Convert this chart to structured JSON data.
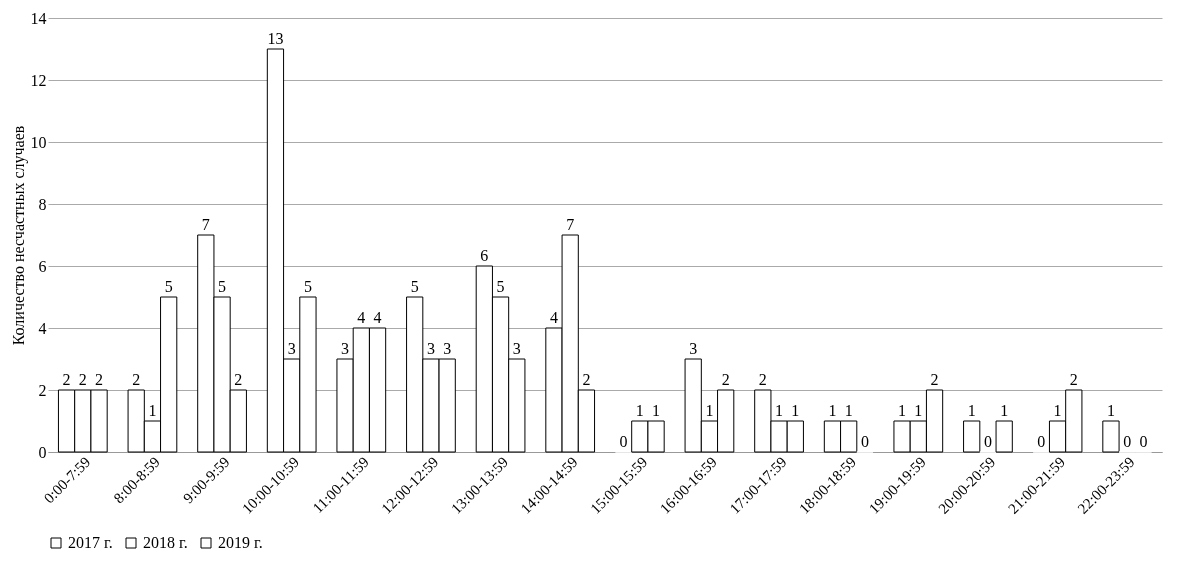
{
  "chart_data": {
    "type": "bar",
    "ylabel": "Количество несчастных случаев",
    "categories": [
      "0:00-7:59",
      "8:00-8:59",
      "9:00-9:59",
      "10:00-10:59",
      "11:00-11:59",
      "12:00-12:59",
      "13:00-13:59",
      "14:00-14:59",
      "15:00-15:59",
      "16:00-16:59",
      "17:00-17:59",
      "18:00-18:59",
      "19:00-19:59",
      "20:00-20:59",
      "21:00-21:59",
      "22:00-23:59"
    ],
    "series": [
      {
        "name": "2017 г.",
        "color": "#ffffff",
        "values": [
          2,
          2,
          7,
          13,
          3,
          5,
          6,
          4,
          0,
          3,
          2,
          1,
          1,
          1,
          0,
          1
        ]
      },
      {
        "name": "2018 г.",
        "color": "#ffffff",
        "values": [
          2,
          1,
          5,
          3,
          4,
          3,
          5,
          7,
          1,
          1,
          1,
          1,
          1,
          0,
          1,
          0
        ]
      },
      {
        "name": "2019 г.",
        "color": "#ffffff",
        "values": [
          2,
          5,
          2,
          5,
          4,
          3,
          3,
          2,
          1,
          2,
          1,
          0,
          2,
          1,
          2,
          0
        ]
      }
    ],
    "ylim": [
      0,
      14
    ],
    "yticks": [
      0,
      2,
      4,
      6,
      8,
      10,
      12,
      14
    ],
    "grid": "y",
    "legend": "bottom",
    "data_labels": true
  }
}
